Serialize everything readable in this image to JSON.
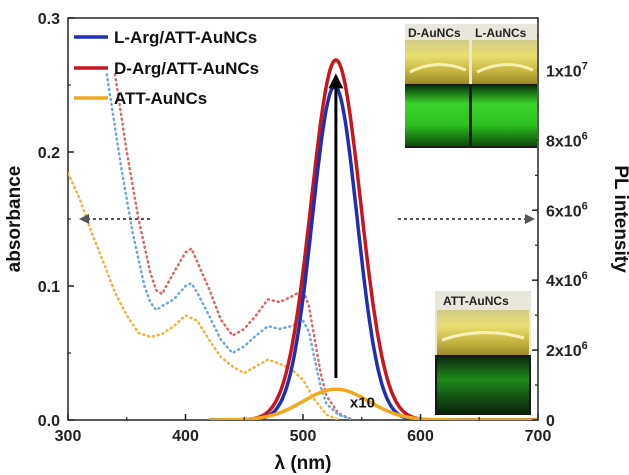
{
  "chart_data": {
    "type": "line",
    "xlabel": "λ (nm)",
    "ylabel_left": "absorbance",
    "ylabel_right": "PL intensity",
    "xlim": [
      300,
      700
    ],
    "ylim_left": [
      0,
      0.3
    ],
    "ylim_right": [
      0,
      11500000
    ],
    "x_ticks": [
      300,
      400,
      500,
      600,
      700
    ],
    "x_tick_labels": [
      "300",
      "400",
      "500",
      "600",
      "700"
    ],
    "y_left_ticks": [
      0.0,
      0.1,
      0.2,
      0.3
    ],
    "y_left_tick_labels": [
      "0.0",
      "0.1",
      "0.2",
      "0.3"
    ],
    "y_right_ticks": [
      0,
      2000000,
      4000000,
      6000000,
      8000000,
      10000000
    ],
    "y_right_tick_labels": [
      {
        "base": "0",
        "exp": ""
      },
      {
        "base": "2x10",
        "exp": "6"
      },
      {
        "base": "4x10",
        "exp": "6"
      },
      {
        "base": "6x10",
        "exp": "6"
      },
      {
        "base": "8x10",
        "exp": "6"
      },
      {
        "base": "1x10",
        "exp": "7"
      }
    ],
    "grid": false,
    "legend_position": "top-left",
    "legend": [
      {
        "label": "L-Arg/ATT-AuNCs",
        "color": "#1f2fb5"
      },
      {
        "label": "D-Arg/ATT-AuNCs",
        "color": "#c8161d"
      },
      {
        "label": "ATT-AuNCs",
        "color": "#f0a91e"
      }
    ],
    "emission_series": [
      {
        "color": "#c8161d",
        "axis": "right",
        "style": "solid",
        "peak_x": 528,
        "peak_y": 10300000,
        "width_nm": 21
      },
      {
        "color": "#1f2fb5",
        "axis": "right",
        "style": "solid",
        "peak_x": 527,
        "peak_y": 9550000,
        "width_nm": 19
      },
      {
        "color": "#f0a91e",
        "axis": "right",
        "style": "solid",
        "peak_x": 528,
        "peak_y": 880000,
        "width_nm": 28
      }
    ],
    "absorbance_series": [
      {
        "color": "#e06565",
        "axis": "left",
        "style": "dotted",
        "x": [
          340,
          350,
          360,
          370,
          375,
          380,
          390,
          400,
          405,
          410,
          420,
          430,
          440,
          450,
          460,
          470,
          480,
          490,
          500,
          505,
          510,
          515,
          520,
          530,
          540
        ],
        "y": [
          0.258,
          0.2,
          0.15,
          0.11,
          0.097,
          0.094,
          0.11,
          0.125,
          0.128,
          0.118,
          0.098,
          0.075,
          0.063,
          0.068,
          0.078,
          0.09,
          0.088,
          0.092,
          0.097,
          0.085,
          0.06,
          0.035,
          0.018,
          0.005,
          0.001
        ]
      },
      {
        "color": "#6fa8d8",
        "axis": "left",
        "style": "dotted",
        "x": [
          333,
          345,
          355,
          365,
          370,
          375,
          380,
          390,
          400,
          405,
          410,
          420,
          430,
          440,
          450,
          460,
          470,
          480,
          490,
          500,
          505,
          510,
          515,
          520,
          530,
          540
        ],
        "y": [
          0.258,
          0.19,
          0.14,
          0.1,
          0.088,
          0.082,
          0.085,
          0.09,
          0.1,
          0.102,
          0.095,
          0.078,
          0.06,
          0.05,
          0.055,
          0.063,
          0.07,
          0.068,
          0.07,
          0.074,
          0.066,
          0.045,
          0.025,
          0.012,
          0.004,
          0.001
        ]
      },
      {
        "color": "#f0b43c",
        "axis": "left",
        "style": "dotted",
        "x": [
          300,
          310,
          320,
          330,
          340,
          350,
          360,
          370,
          380,
          390,
          400,
          410,
          420,
          430,
          440,
          450,
          460,
          470,
          480,
          490,
          500,
          510,
          520,
          530
        ],
        "y": [
          0.184,
          0.165,
          0.14,
          0.118,
          0.095,
          0.078,
          0.065,
          0.062,
          0.064,
          0.07,
          0.078,
          0.074,
          0.06,
          0.047,
          0.04,
          0.035,
          0.04,
          0.045,
          0.042,
          0.038,
          0.03,
          0.015,
          0.004,
          0.0
        ]
      }
    ],
    "annotations": {
      "scale_label": "x10",
      "arrow": {
        "x": 528,
        "y_from": 1200000,
        "y_to": 9700000
      }
    },
    "insets": [
      {
        "labels": [
          "D-AuNCs",
          "L-AuNCs"
        ]
      },
      {
        "labels": [
          "ATT-AuNCs"
        ]
      }
    ]
  }
}
